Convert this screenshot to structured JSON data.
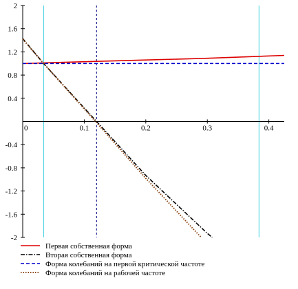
{
  "chart_data": {
    "type": "line",
    "xlim": [
      0,
      0.425
    ],
    "ylim": [
      -2,
      2
    ],
    "x_ticks": [
      0,
      0.1,
      0.2,
      0.3,
      0.4
    ],
    "x_tick_labels": [
      "0",
      "0.1",
      "0.2",
      "0.3",
      "0.4"
    ],
    "y_ticks": [
      2,
      1.6,
      1.2,
      0.8,
      0.4,
      -0.4,
      -0.8,
      -1.2,
      -1.6,
      -2
    ],
    "y_tick_labels": [
      "2",
      "1.6",
      "1.2",
      "0.8",
      "0.4",
      "-0.4",
      "-0.8",
      "-1.2",
      "-1.6",
      "-2"
    ],
    "vertical_markers": [
      {
        "x": 0.034,
        "color": "#40d0e0",
        "style": "solid"
      },
      {
        "x": 0.12,
        "color": "#000080",
        "style": "dashed"
      },
      {
        "x": 0.384,
        "color": "#40d0e0",
        "style": "solid"
      }
    ],
    "series": [
      {
        "name": "Первая собственная форма",
        "color": "#dd0000",
        "style": "solid",
        "x": [
          0,
          0.1,
          0.2,
          0.3,
          0.425
        ],
        "y": [
          1.0,
          1.03,
          1.06,
          1.09,
          1.14
        ]
      },
      {
        "name": "Вторая собственная форма",
        "color": "#000000",
        "style": "dashdot",
        "x": [
          0,
          0.034,
          0.12,
          0.2,
          0.3,
          0.308
        ],
        "y": [
          1.43,
          1.0,
          0.0,
          -0.93,
          -1.93,
          -2.0
        ]
      },
      {
        "name": "Форма колебаний на первой критической частоте",
        "color": "#0000cc",
        "style": "dashed",
        "x": [
          0,
          0.425
        ],
        "y": [
          1.0,
          1.0
        ]
      },
      {
        "name": "Форма колебаний на рабочей частоте",
        "color": "#8b4513",
        "style": "dotted",
        "x": [
          0,
          0.034,
          0.12,
          0.2,
          0.29
        ],
        "y": [
          1.42,
          1.0,
          -0.02,
          -0.98,
          -2.0
        ]
      }
    ],
    "legend_position": "bottom-left"
  }
}
